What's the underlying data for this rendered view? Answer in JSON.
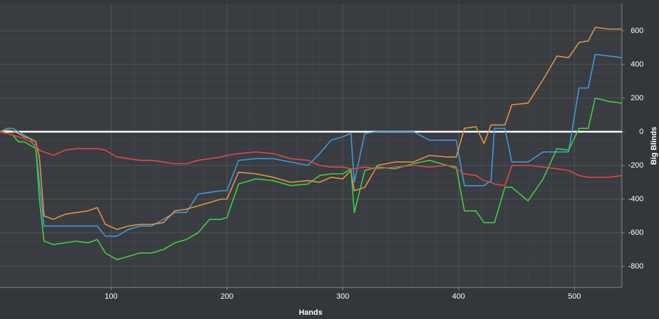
{
  "chart_data": {
    "type": "line",
    "x_label": "Hands",
    "y_label": "Big Blinds",
    "x": [
      4,
      10,
      15,
      20,
      25,
      30,
      35,
      38,
      42,
      50,
      60,
      70,
      80,
      88,
      95,
      105,
      115,
      125,
      135,
      145,
      155,
      165,
      175,
      185,
      195,
      200,
      210,
      225,
      240,
      255,
      270,
      280,
      290,
      300,
      307,
      310,
      319,
      330,
      345,
      361,
      375,
      390,
      398,
      405,
      415,
      422,
      428,
      431,
      440,
      446,
      460,
      473,
      485,
      495,
      504,
      512,
      518,
      530,
      541
    ],
    "series": [
      {
        "color": "#3d9bdc",
        "values": [
          0,
          20,
          20,
          0,
          -20,
          -40,
          -100,
          -300,
          -560,
          -560,
          -560,
          -560,
          -560,
          -560,
          -620,
          -620,
          -580,
          -560,
          -560,
          -520,
          -480,
          -480,
          -370,
          -360,
          -350,
          -350,
          -170,
          -160,
          -160,
          -180,
          -200,
          -130,
          -50,
          -30,
          -10,
          -300,
          -10,
          0,
          0,
          0,
          -50,
          -50,
          -50,
          -320,
          -320,
          -320,
          -290,
          20,
          20,
          -180,
          -180,
          -120,
          -120,
          -120,
          260,
          260,
          460,
          450,
          440
        ]
      },
      {
        "color": "#e8923f",
        "values": [
          0,
          10,
          5,
          -10,
          -30,
          -40,
          -60,
          -150,
          -500,
          -520,
          -490,
          -480,
          -470,
          -450,
          -550,
          -580,
          -560,
          -550,
          -550,
          -540,
          -470,
          -460,
          -440,
          -420,
          -400,
          -400,
          -240,
          -250,
          -270,
          -300,
          -290,
          -300,
          -270,
          -280,
          -230,
          -350,
          -330,
          -200,
          -180,
          -180,
          -140,
          -150,
          -150,
          20,
          30,
          -70,
          40,
          40,
          40,
          160,
          170,
          310,
          450,
          440,
          530,
          540,
          620,
          610,
          610
        ]
      },
      {
        "color": "#3ed13e",
        "values": [
          0,
          -10,
          -20,
          -60,
          -60,
          -80,
          -100,
          -400,
          -650,
          -670,
          -660,
          -650,
          -660,
          -640,
          -720,
          -760,
          -740,
          -720,
          -720,
          -700,
          -660,
          -640,
          -600,
          -520,
          -520,
          -510,
          -310,
          -280,
          -290,
          -320,
          -310,
          -260,
          -250,
          -250,
          -220,
          -480,
          -230,
          -210,
          -220,
          -190,
          -170,
          -200,
          -210,
          -470,
          -470,
          -540,
          -540,
          -540,
          -330,
          -330,
          -410,
          -280,
          -100,
          -110,
          20,
          20,
          200,
          180,
          170
        ]
      },
      {
        "color": "#e0474c",
        "values": [
          0,
          -10,
          -20,
          -30,
          -40,
          -60,
          -80,
          -110,
          -120,
          -140,
          -110,
          -100,
          -100,
          -100,
          -110,
          -150,
          -160,
          -170,
          -170,
          -180,
          -190,
          -190,
          -170,
          -160,
          -150,
          -140,
          -130,
          -120,
          -130,
          -160,
          -170,
          -200,
          -210,
          -210,
          -220,
          -220,
          -210,
          -220,
          -210,
          -200,
          -210,
          -200,
          -220,
          -250,
          -260,
          -290,
          -300,
          -310,
          -320,
          -200,
          -200,
          -210,
          -220,
          -230,
          -260,
          -270,
          -270,
          -270,
          -260
        ]
      }
    ],
    "xlim": [
      4,
      541
    ],
    "xticks": [
      100,
      200,
      300,
      400,
      500
    ],
    "ylim": [
      -925,
      762
    ],
    "yticks": [
      -800,
      -600,
      -400,
      -200,
      0,
      200,
      400,
      600
    ],
    "grid": true,
    "zero_line": true
  }
}
